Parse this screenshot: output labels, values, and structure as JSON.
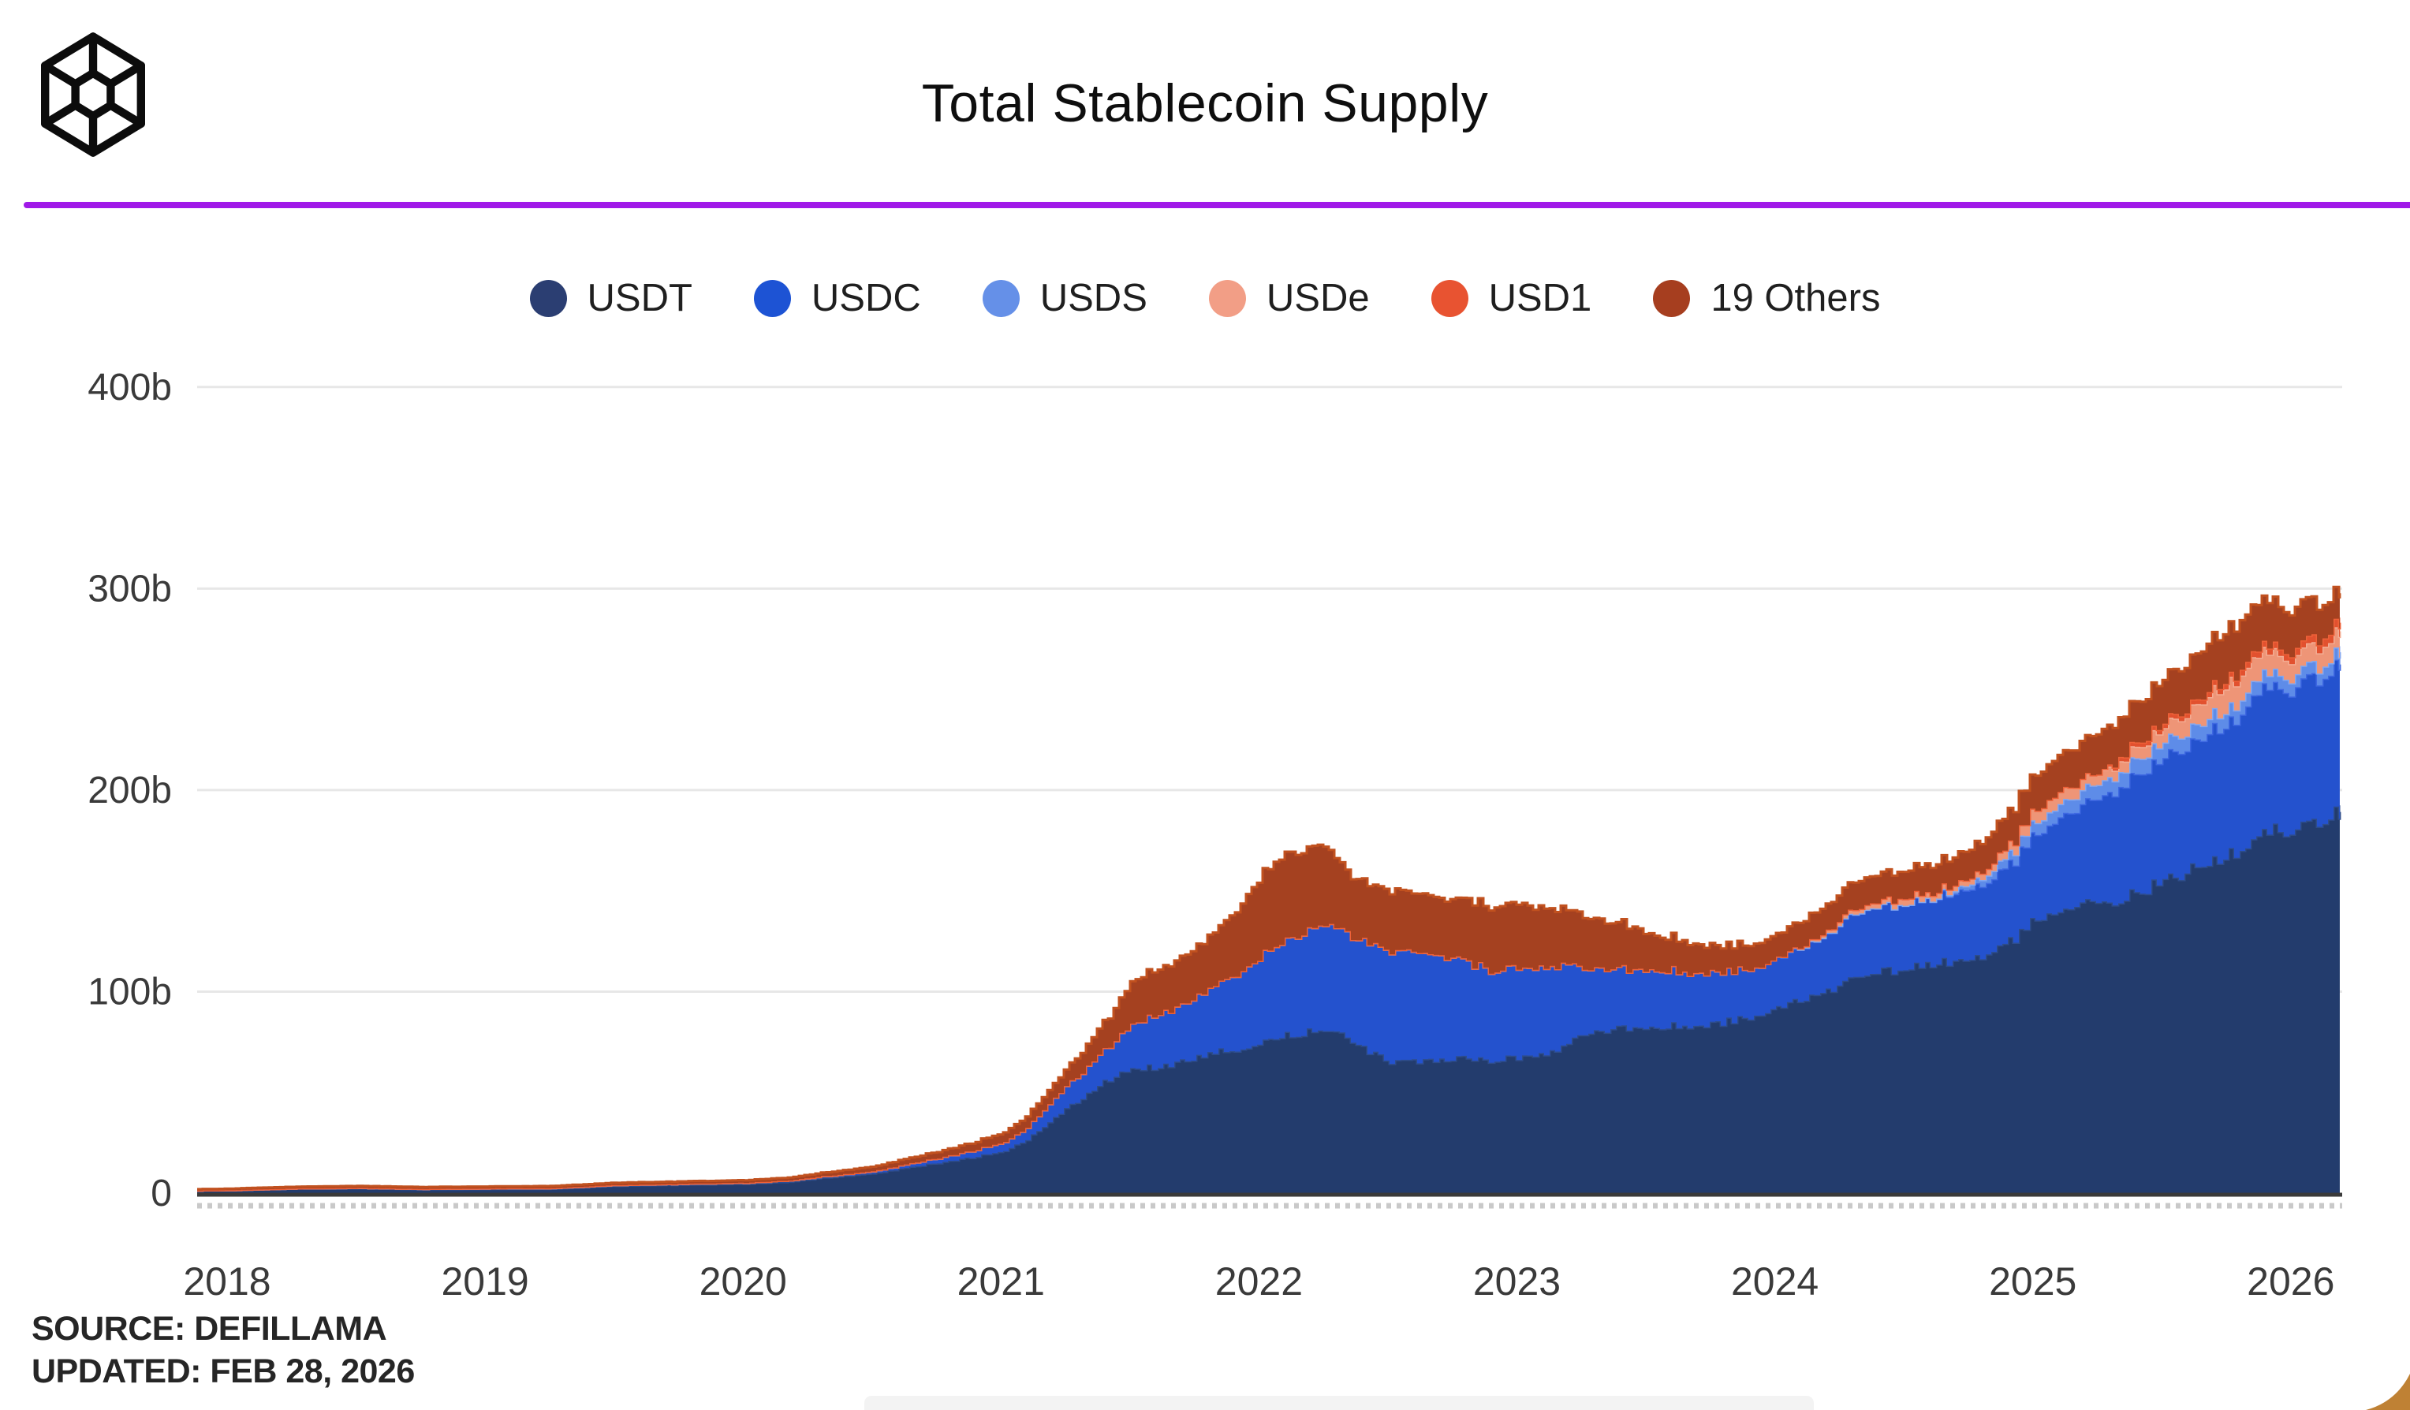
{
  "header": {
    "logo": "cube-wireframe-icon",
    "divider_color": "#a019e8"
  },
  "footer": {
    "source": "SOURCE: DEFILLAMA",
    "updated": "UPDATED: FEB 28, 2026"
  },
  "chart_data": {
    "type": "area",
    "stacked": true,
    "title": "Total Stablecoin Supply",
    "xlabel": "",
    "ylabel": "",
    "ylim": [
      0,
      400
    ],
    "xlim": [
      2017.88,
      2026.3
    ],
    "grid": "horizontal",
    "legend_position": "top-center",
    "y_ticks": [
      {
        "label": "0",
        "value": 0
      },
      {
        "label": "100b",
        "value": 100
      },
      {
        "label": "200b",
        "value": 200
      },
      {
        "label": "300b",
        "value": 300
      },
      {
        "label": "400b",
        "value": 400
      }
    ],
    "x_ticks": [
      "2018",
      "2019",
      "2020",
      "2021",
      "2022",
      "2023",
      "2024",
      "2025",
      "2026"
    ],
    "axis": {
      "baseline_color": "#3a3a3a",
      "gridline_color": "#e7e7e7",
      "minor_tick_color": "#c9c9c9",
      "label_color": "#3a3a3a"
    },
    "x": [
      2017.88,
      2018.0,
      2018.25,
      2018.5,
      2018.75,
      2019.0,
      2019.25,
      2019.5,
      2019.75,
      2020.0,
      2020.17,
      2020.33,
      2020.5,
      2020.67,
      2020.83,
      2021.0,
      2021.08,
      2021.17,
      2021.25,
      2021.33,
      2021.42,
      2021.5,
      2021.58,
      2021.67,
      2021.75,
      2021.83,
      2021.92,
      2022.0,
      2022.08,
      2022.17,
      2022.25,
      2022.33,
      2022.42,
      2022.5,
      2022.58,
      2022.67,
      2022.75,
      2022.83,
      2022.92,
      2023.0,
      2023.08,
      2023.17,
      2023.25,
      2023.33,
      2023.42,
      2023.5,
      2023.58,
      2023.67,
      2023.75,
      2023.83,
      2023.92,
      2024.0,
      2024.08,
      2024.17,
      2024.25,
      2024.33,
      2024.42,
      2024.5,
      2024.58,
      2024.67,
      2024.75,
      2024.83,
      2024.92,
      2025.0,
      2025.04,
      2025.08,
      2025.17,
      2025.25,
      2025.33,
      2025.42,
      2025.5,
      2025.58,
      2025.67,
      2025.75,
      2025.83,
      2025.88,
      2025.92,
      2026.0,
      2026.04,
      2026.08,
      2026.12,
      2026.19
    ],
    "series": [
      {
        "name": "USDT",
        "color": "#2b3e72",
        "fill": "#233c6d",
        "edge": "#2e4d8c",
        "values": [
          1.3,
          1.4,
          2.2,
          2.4,
          1.8,
          2.0,
          2.1,
          3.6,
          4.1,
          4.6,
          5.6,
          8.0,
          9.8,
          13.5,
          16.5,
          21,
          25,
          34,
          42,
          50,
          57,
          62,
          62.5,
          64,
          68,
          70,
          72,
          75,
          78,
          80,
          81,
          77,
          70,
          65,
          65.5,
          66.5,
          67,
          66,
          66.5,
          67,
          69,
          72,
          79,
          81,
          82.5,
          83.5,
          83,
          83.5,
          84,
          85.5,
          88.5,
          92,
          95,
          99,
          104,
          108,
          110,
          111.5,
          112.5,
          114.5,
          117.5,
          120,
          126,
          135,
          137.5,
          139.5,
          142,
          144,
          147,
          151,
          155,
          159,
          163,
          168,
          173,
          177,
          179,
          181.5,
          183.5,
          185,
          186.5,
          188.5
        ]
      },
      {
        "name": "USDC",
        "color": "#1d53d4",
        "fill": "#2452ce",
        "edge": "#3e68e2",
        "values": [
          0.02,
          0.05,
          0.1,
          0.2,
          0.28,
          0.35,
          0.35,
          0.4,
          0.45,
          0.52,
          0.62,
          0.75,
          1.1,
          1.9,
          2.9,
          4.3,
          5.5,
          8.5,
          11,
          13.5,
          17,
          22,
          25.5,
          27.5,
          30,
          33.5,
          38.5,
          43,
          47,
          51,
          52.5,
          51.5,
          53,
          55.5,
          54.5,
          52,
          50,
          46.5,
          44.5,
          44,
          43,
          41,
          33,
          30.5,
          29,
          28.5,
          27.5,
          26.5,
          25.5,
          24.5,
          24.3,
          24.5,
          25.5,
          27.5,
          30,
          32,
          32.5,
          32.3,
          32.5,
          33.5,
          34.5,
          36,
          39,
          42.5,
          44,
          45.5,
          48,
          51,
          56.5,
          59.5,
          61,
          62,
          64,
          66.5,
          69.5,
          71,
          70.5,
          70,
          71,
          71.5,
          72,
          73
        ]
      },
      {
        "name": "USDS",
        "color": "#6590e8",
        "fill": "#5e8ce8",
        "edge": "#85a8f0",
        "values": [
          0,
          0,
          0,
          0,
          0,
          0,
          0,
          0,
          0,
          0,
          0,
          0,
          0,
          0,
          0,
          0,
          0,
          0,
          0,
          0,
          0,
          0,
          0,
          0,
          0,
          0,
          0,
          0,
          0,
          0,
          0,
          0,
          0,
          0,
          0,
          0,
          0,
          0,
          0,
          0,
          0,
          0,
          0,
          0,
          0,
          0,
          0,
          0,
          0,
          0,
          0,
          0,
          0,
          0,
          0,
          0,
          0,
          0,
          0,
          1.0,
          2.5,
          4.0,
          5.2,
          6.0,
          6.3,
          6.6,
          7.0,
          7.3,
          7.6,
          7.9,
          7.8,
          7.5,
          7.4,
          7.2,
          7.0,
          6.8,
          6.6,
          6.4,
          6.2,
          6.1,
          6.0,
          6.0
        ]
      },
      {
        "name": "USDe",
        "color": "#f29e86",
        "fill": "#ee9577",
        "edge": "#f3ac93",
        "values": [
          0,
          0,
          0,
          0,
          0,
          0,
          0,
          0,
          0,
          0,
          0,
          0,
          0,
          0,
          0,
          0,
          0,
          0,
          0,
          0,
          0,
          0,
          0,
          0,
          0,
          0,
          0,
          0,
          0,
          0,
          0,
          0,
          0,
          0,
          0,
          0,
          0,
          0,
          0,
          0,
          0,
          0,
          0,
          0,
          0,
          0,
          0,
          0,
          0,
          0,
          0,
          0,
          0.4,
          1.4,
          2.0,
          2.3,
          2.6,
          3.2,
          3.0,
          2.7,
          2.8,
          3.5,
          4.8,
          5.9,
          6.1,
          6.3,
          5.5,
          5.1,
          5.4,
          5.8,
          7.3,
          9.0,
          11.0,
          12.3,
          12.0,
          11.2,
          10.2,
          9.4,
          9.2,
          9.5,
          10.0,
          10.4
        ]
      },
      {
        "name": "USD1",
        "color": "#e85331",
        "fill": "#e2512f",
        "edge": "#ee6138",
        "values": [
          0,
          0,
          0,
          0,
          0,
          0,
          0,
          0,
          0,
          0,
          0,
          0,
          0,
          0,
          0,
          0,
          0,
          0,
          0,
          0,
          0,
          0,
          0,
          0,
          0,
          0,
          0,
          0,
          0,
          0,
          0,
          0,
          0,
          0,
          0,
          0,
          0,
          0,
          0,
          0,
          0,
          0,
          0,
          0,
          0,
          0,
          0,
          0,
          0,
          0,
          0,
          0,
          0,
          0,
          0,
          0,
          0,
          0,
          0,
          0,
          0,
          0,
          0,
          0,
          0,
          0,
          0,
          0,
          2.1,
          2.2,
          2.2,
          2.4,
          2.5,
          2.6,
          3.0,
          3.0,
          3.1,
          3.4,
          3.6,
          3.9,
          4.1,
          4.3
        ]
      },
      {
        "name": "19 Others",
        "color": "#a63e1f",
        "fill": "#a54120",
        "edge": "#c1511f",
        "values": [
          0.7,
          0.8,
          0.9,
          1.0,
          1.0,
          1.0,
          1.1,
          1.2,
          1.25,
          1.3,
          1.5,
          1.9,
          2.3,
          2.9,
          3.6,
          4.7,
          5.5,
          6.8,
          8.5,
          11,
          15,
          21,
          22.5,
          23,
          24.5,
          26.5,
          33,
          40,
          43,
          41,
          38.5,
          31,
          29,
          30.5,
          29.5,
          29,
          29,
          31,
          31.5,
          32,
          30,
          28,
          26,
          24,
          22,
          18.5,
          16.5,
          15,
          13.5,
          12.5,
          12,
          12,
          12.5,
          13,
          13.5,
          13.8,
          13.5,
          13.8,
          14,
          14,
          14.5,
          15.5,
          16.5,
          17.5,
          18,
          18.5,
          19,
          19.5,
          20,
          20.5,
          21.5,
          22.5,
          23.5,
          24.5,
          24,
          23,
          22,
          21,
          20,
          19,
          17,
          15
        ]
      }
    ]
  }
}
